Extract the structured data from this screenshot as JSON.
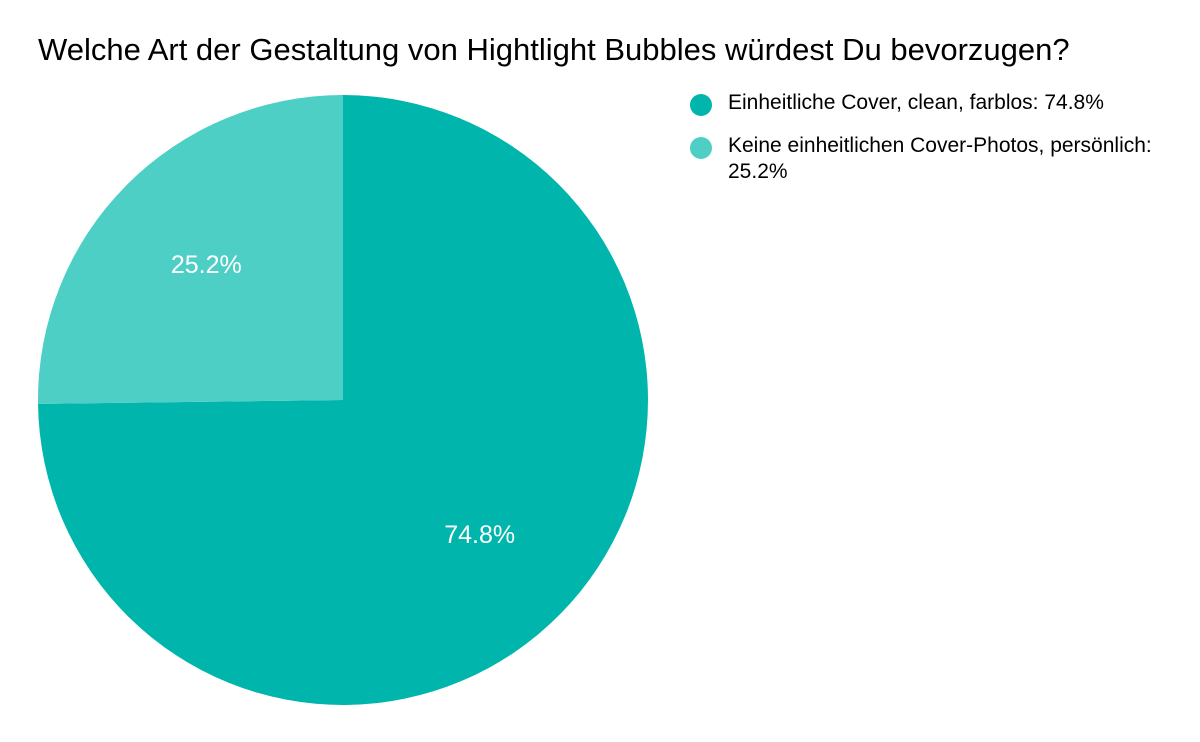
{
  "chart_data": {
    "type": "pie",
    "title": "Welche Art der Gestaltung von Hightlight Bubbles würdest Du bevorzugen?",
    "legend_position": "right",
    "slices": [
      {
        "legend_label": "Einheitliche Cover, clean, farblos: 74.8%",
        "value": 74.8,
        "data_label": "74.8%",
        "color": "#00B6AC"
      },
      {
        "legend_label": "Keine einheitlichen Cover-Photos, persönlich: 25.2%",
        "value": 25.2,
        "data_label": "25.2%",
        "color": "#4DCFC6"
      }
    ]
  }
}
